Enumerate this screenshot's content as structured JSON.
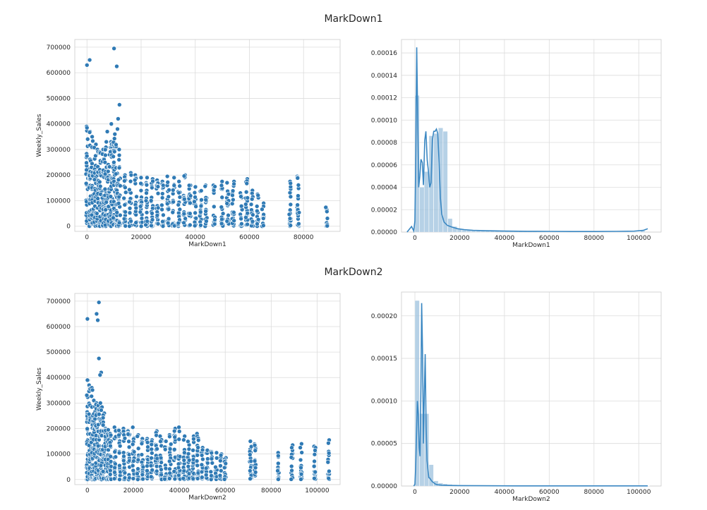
{
  "figure": {
    "row_titles": [
      "MarkDown1",
      "MarkDown2"
    ]
  },
  "colors": {
    "point": "#2f7ab5",
    "point_edge": "#ffffff",
    "line": "#3a87c2",
    "bar": "#9dc1de"
  },
  "chart_data": [
    {
      "type": "scatter",
      "title": "",
      "xlabel": "MarkDown1",
      "ylabel": "Weekly_Sales",
      "xlim": [
        -4500,
        93500
      ],
      "ylim": [
        -20000,
        730000
      ],
      "xticks": [
        0,
        20000,
        40000,
        60000,
        80000
      ],
      "yticks": [
        0,
        100000,
        200000,
        300000,
        400000,
        500000,
        600000,
        700000
      ],
      "xtick_labels": [
        "0",
        "20000",
        "40000",
        "60000",
        "80000"
      ],
      "ytick_labels": [
        "0",
        "100000",
        "200000",
        "300000",
        "400000",
        "500000",
        "600000",
        "700000"
      ],
      "grid": true,
      "column_x": [
        0,
        1000,
        2000,
        3000,
        4000,
        5000,
        6000,
        7000,
        8000,
        9000,
        10000,
        11000,
        12000,
        14000,
        16000,
        18000,
        20000,
        22000,
        24000,
        26000,
        28000,
        30000,
        32000,
        34000,
        36000,
        38000,
        40000,
        42000,
        44000,
        47000,
        50000,
        52000,
        54000,
        57000,
        59000,
        61000,
        63000,
        65000,
        75000,
        78000,
        88500
      ],
      "column_max": [
        390000,
        370000,
        350000,
        320000,
        300000,
        290000,
        300000,
        330000,
        280000,
        330000,
        360000,
        380000,
        300000,
        200000,
        210000,
        200000,
        190000,
        190000,
        185000,
        180000,
        175000,
        195000,
        190000,
        175000,
        200000,
        160000,
        155000,
        140000,
        160000,
        160000,
        175000,
        170000,
        175000,
        130000,
        185000,
        140000,
        125000,
        90000,
        175000,
        195000,
        75000
      ],
      "outliers": [
        [
          0,
          630000
        ],
        [
          1000,
          650000
        ],
        [
          10000,
          695000
        ],
        [
          11000,
          625000
        ],
        [
          12000,
          475000
        ],
        [
          11500,
          420000
        ],
        [
          9000,
          400000
        ],
        [
          7500,
          370000
        ],
        [
          0,
          385000
        ]
      ]
    },
    {
      "type": "area",
      "title": "",
      "xlabel": "MarkDown1",
      "ylabel": "",
      "xlim": [
        -6000,
        110000
      ],
      "ylim": [
        0,
        0.000172
      ],
      "xticks": [
        0,
        20000,
        40000,
        60000,
        80000,
        100000
      ],
      "yticks": [
        0,
        2e-05,
        4e-05,
        6e-05,
        8e-05,
        0.0001,
        0.00012,
        0.00014,
        0.00016
      ],
      "xtick_labels": [
        "0",
        "20000",
        "40000",
        "60000",
        "80000",
        "100000"
      ],
      "ytick_labels": [
        "0.00000",
        "0.00002",
        "0.00004",
        "0.00006",
        "0.00008",
        "0.00010",
        "0.00012",
        "0.00014",
        "0.00016"
      ],
      "grid": true,
      "bins": {
        "start": 0,
        "width": 2100,
        "heights": [
          0.000122,
          4e-05,
          5.4e-05,
          8.6e-05,
          8.8e-05,
          9.3e-05,
          9e-05,
          1.2e-05,
          5e-06,
          3e-06,
          2.5e-06,
          2e-06,
          1.8e-06,
          1.5e-06,
          1.3e-06,
          1.2e-06,
          1e-06,
          9e-07,
          8e-07,
          7e-07,
          6e-07,
          5e-07,
          5e-07,
          4e-07,
          4e-07,
          4e-07,
          3e-07,
          3e-07,
          3e-07,
          3e-07,
          3e-07,
          2e-07,
          2e-07,
          2e-07,
          2e-07,
          2e-07,
          2e-07,
          2e-07,
          2e-07,
          2e-07,
          2e-07,
          2e-07,
          2e-07,
          2e-07,
          2e-07,
          2e-07,
          2e-07,
          2e-07,
          1e-06
        ]
      },
      "kde": {
        "x": [
          -3500,
          -1500,
          -500,
          0,
          400,
          800,
          1200,
          1700,
          2200,
          2700,
          3300,
          3800,
          4400,
          4900,
          5500,
          6000,
          6600,
          7200,
          7800,
          8400,
          9000,
          9600,
          10200,
          10800,
          11400,
          12000,
          13000,
          14500,
          16500,
          19000,
          22000,
          26000,
          32000,
          40000,
          50000,
          60000,
          70000,
          80000,
          90000,
          98000,
          102000,
          104000
        ],
        "y": [
          0,
          5e-06,
          1e-06,
          1e-05,
          7e-05,
          0.000165,
          0.00011,
          4e-05,
          5e-05,
          6.5e-05,
          6.2e-05,
          4.2e-05,
          8.2e-05,
          9e-05,
          6.4e-05,
          5.5e-05,
          4e-05,
          4.4e-05,
          8.2e-05,
          9e-05,
          9e-05,
          9.2e-05,
          8.8e-05,
          6.2e-05,
          3e-05,
          1.6e-05,
          9e-06,
          6e-06,
          4.5e-06,
          3e-06,
          2.2e-06,
          1.6e-06,
          1.2e-06,
          9e-07,
          7e-07,
          6e-07,
          5e-07,
          5e-07,
          6e-07,
          8e-07,
          1.5e-06,
          3e-06
        ]
      }
    },
    {
      "type": "scatter",
      "title": "",
      "xlabel": "MarkDown2",
      "ylabel": "Weekly_Sales",
      "xlim": [
        -5500,
        110000
      ],
      "ylim": [
        -20000,
        730000
      ],
      "xticks": [
        0,
        20000,
        40000,
        60000,
        80000,
        100000
      ],
      "yticks": [
        0,
        100000,
        200000,
        300000,
        400000,
        500000,
        600000,
        700000
      ],
      "xtick_labels": [
        "0",
        "20000",
        "40000",
        "60000",
        "80000",
        "100000"
      ],
      "ytick_labels": [
        "0",
        "100000",
        "200000",
        "300000",
        "400000",
        "500000",
        "600000",
        "700000"
      ],
      "grid": true,
      "column_x": [
        0,
        1000,
        2000,
        3000,
        4000,
        5000,
        6000,
        7000,
        8000,
        9000,
        10000,
        12000,
        14000,
        16000,
        18000,
        20000,
        22000,
        24000,
        26000,
        28000,
        30000,
        32000,
        34000,
        36000,
        38000,
        40000,
        42000,
        44000,
        46000,
        48000,
        50000,
        52000,
        54000,
        56000,
        58000,
        60000,
        71000,
        73000,
        83000,
        89000,
        93000,
        99000,
        105000
      ],
      "column_max": [
        390000,
        370000,
        360000,
        310000,
        300000,
        290000,
        300000,
        260000,
        200000,
        195000,
        180000,
        205000,
        195000,
        200000,
        190000,
        205000,
        175000,
        160000,
        160000,
        155000,
        190000,
        170000,
        150000,
        175000,
        200000,
        205000,
        170000,
        150000,
        170000,
        180000,
        125000,
        115000,
        110000,
        105000,
        100000,
        85000,
        150000,
        140000,
        105000,
        135000,
        140000,
        130000,
        155000
      ],
      "outliers": [
        [
          0,
          630000
        ],
        [
          5000,
          695000
        ],
        [
          4000,
          650000
        ],
        [
          4500,
          625000
        ],
        [
          5000,
          475000
        ],
        [
          6000,
          420000
        ],
        [
          5500,
          410000
        ],
        [
          0,
          390000
        ]
      ]
    },
    {
      "type": "area",
      "title": "",
      "xlabel": "MarkDown2",
      "ylabel": "",
      "xlim": [
        -6000,
        110000
      ],
      "ylim": [
        0,
        0.000228
      ],
      "xticks": [
        0,
        20000,
        40000,
        60000,
        80000,
        100000
      ],
      "yticks": [
        0,
        5e-05,
        0.0001,
        0.00015,
        0.0002
      ],
      "xtick_labels": [
        "0",
        "20000",
        "40000",
        "60000",
        "80000",
        "100000"
      ],
      "ytick_labels": [
        "0.00000",
        "0.00005",
        "0.00010",
        "0.00015",
        "0.00020"
      ],
      "grid": true,
      "bins": {
        "start": 0,
        "width": 2100,
        "heights": [
          0.000218,
          8.5e-05,
          8.5e-05,
          2.5e-05,
          6e-06,
          3.5e-06,
          2.5e-06,
          2e-06,
          1.5e-06,
          1.2e-06,
          1e-06,
          8e-07,
          7e-07,
          6e-07,
          5e-07,
          4e-07,
          4e-07,
          3e-07,
          3e-07,
          3e-07,
          3e-07,
          2e-07,
          2e-07,
          2e-07,
          2e-07,
          2e-07,
          2e-07,
          2e-07,
          2e-07,
          2e-07,
          2e-07,
          2e-07,
          2e-07,
          2e-07,
          2e-07,
          2e-07,
          2e-07,
          2e-07,
          2e-07,
          2e-07,
          2e-07,
          2e-07,
          2e-07,
          2e-07,
          2e-07,
          2e-07,
          2e-07,
          2e-07,
          2e-07,
          2e-07
        ]
      },
      "kde": {
        "x": [
          -500,
          0,
          300,
          700,
          1100,
          1500,
          1900,
          2300,
          2700,
          3000,
          3400,
          3800,
          4200,
          4600,
          5000,
          5400,
          5800,
          6200,
          6700,
          7200,
          7800,
          8400,
          9000,
          10000,
          12000,
          15000,
          20000,
          30000,
          45000,
          60000,
          80000,
          100000,
          104000
        ],
        "y": [
          0,
          2e-06,
          2e-05,
          6e-05,
          0.0001,
          8.5e-05,
          4.5e-05,
          3.5e-05,
          0.00012,
          0.000215,
          0.00016,
          5e-05,
          0.00011,
          0.000155,
          7e-05,
          3e-05,
          2e-05,
          1e-05,
          9e-06,
          7e-06,
          5e-06,
          4e-06,
          2.5e-06,
          1.5e-06,
          1e-06,
          7e-07,
          5e-07,
          3e-07,
          2e-07,
          2e-07,
          2e-07,
          2e-07,
          2e-07
        ]
      }
    }
  ]
}
